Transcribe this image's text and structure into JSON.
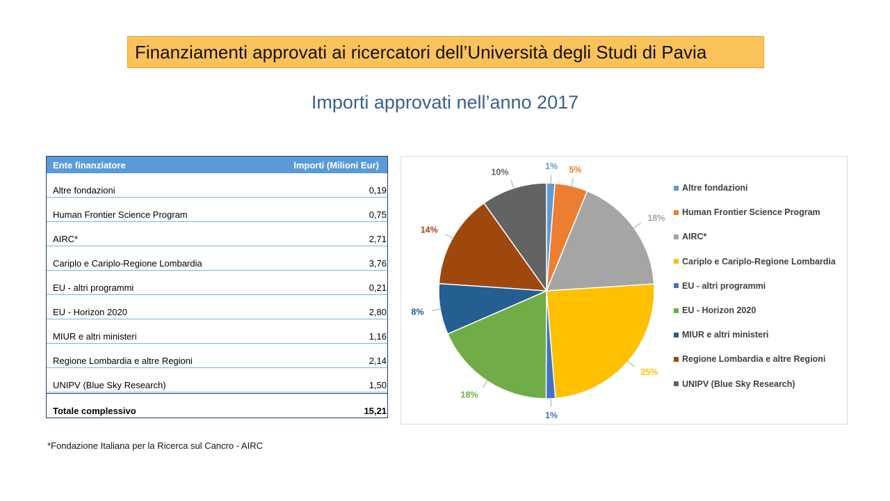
{
  "header": {
    "title": "Finanziamenti approvati ai ricercatori dell’Università degli Studi di Pavia",
    "subtitle": "Importi approvati nell’anno 2017"
  },
  "table": {
    "col_entity": "Ente finanziatore",
    "col_amount": "Importi (Milioni Eur)",
    "rows": [
      {
        "entity": "Altre fondazioni",
        "amount": "0,19"
      },
      {
        "entity": "Human Frontier Science Program",
        "amount": "0,75"
      },
      {
        "entity": "AIRC*",
        "amount": "2,71"
      },
      {
        "entity": "Cariplo e Cariplo-Regione Lombardia",
        "amount": "3,76"
      },
      {
        "entity": "EU - altri programmi",
        "amount": "0,21"
      },
      {
        "entity": "EU - Horizon 2020",
        "amount": "2,80"
      },
      {
        "entity": "MIUR e altri ministeri",
        "amount": "1,16"
      },
      {
        "entity": "Regione Lombardia e altre Regioni",
        "amount": "2,14"
      },
      {
        "entity": "UNIPV (Blue Sky Research)",
        "amount": "1,50"
      }
    ],
    "total_label": "Totale complessivo",
    "total_amount": "15,21"
  },
  "footnote": "*Fondazione Italiana per la Ricerca sul Cancro - AIRC",
  "chart_data": {
    "type": "pie",
    "legend_position": "right",
    "categories": [
      "Altre fondazioni",
      "Human Frontier Science Program",
      "AIRC*",
      "Cariplo e Cariplo-Regione Lombardia",
      "EU - altri programmi",
      "EU - Horizon 2020",
      "MIUR e altri ministeri",
      "Regione Lombardia e altre Regioni",
      "UNIPV (Blue Sky Research)"
    ],
    "values": [
      0.19,
      0.75,
      2.71,
      3.76,
      0.21,
      2.8,
      1.16,
      2.14,
      1.5
    ],
    "data_labels": [
      "1%",
      "5%",
      "18%",
      "25%",
      "1%",
      "18%",
      "8%",
      "14%",
      "10%"
    ],
    "colors": [
      "#5b9bd5",
      "#ed7d31",
      "#a5a5a5",
      "#ffc000",
      "#4472c4",
      "#70ad47",
      "#255e91",
      "#9e480e",
      "#636363"
    ]
  }
}
